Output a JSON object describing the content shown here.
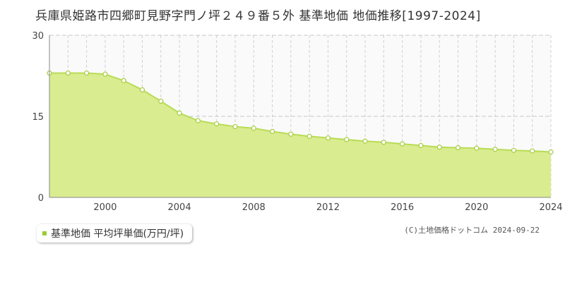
{
  "title": "兵庫県姫路市四郷町見野字門ノ坪２４９番５外 基準地価 地価推移[1997-2024]",
  "legend": {
    "label": "基準地価 平均坪単価(万円/坪)"
  },
  "copyright": "(C)土地価格ドットコム 2024-09-22",
  "colors": {
    "fill": "#d9ec8f",
    "line": "#b9dc55",
    "marker_stroke": "#a8cc40",
    "legend_marker": "#9acd32"
  },
  "chart_data": {
    "type": "area",
    "x": [
      1997,
      1998,
      1999,
      2000,
      2001,
      2002,
      2003,
      2004,
      2005,
      2006,
      2007,
      2008,
      2009,
      2010,
      2011,
      2012,
      2013,
      2014,
      2015,
      2016,
      2017,
      2018,
      2019,
      2020,
      2021,
      2022,
      2023,
      2024
    ],
    "series": [
      {
        "name": "基準地価 平均坪単価(万円/坪)",
        "values": [
          23.0,
          23.0,
          23.0,
          22.8,
          21.6,
          19.9,
          17.8,
          15.6,
          14.2,
          13.6,
          13.1,
          12.8,
          12.2,
          11.7,
          11.3,
          11.0,
          10.7,
          10.4,
          10.2,
          9.9,
          9.6,
          9.3,
          9.2,
          9.1,
          8.9,
          8.7,
          8.6,
          8.4
        ]
      }
    ],
    "xlim": [
      1997,
      2024
    ],
    "ylim": [
      0,
      30
    ],
    "x_ticks": [
      2000,
      2004,
      2008,
      2012,
      2016,
      2020,
      2024
    ],
    "y_ticks": [
      0,
      15,
      30
    ],
    "grid": true
  }
}
